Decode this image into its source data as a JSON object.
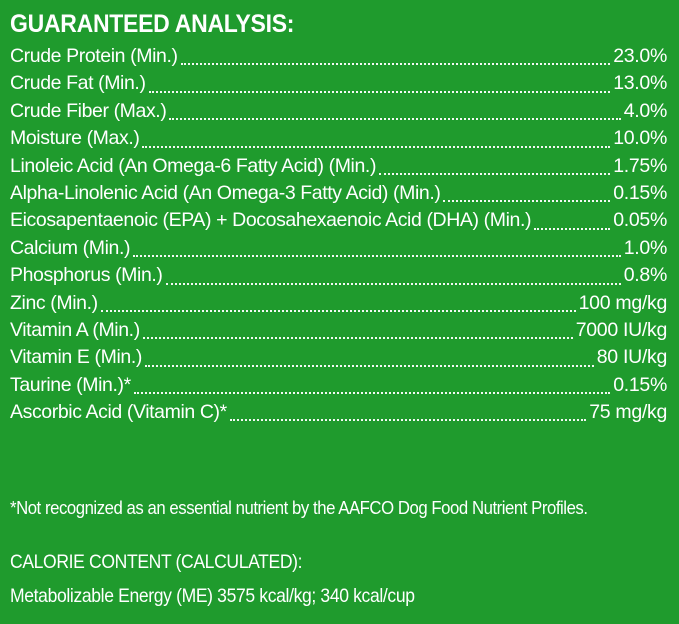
{
  "analysis": {
    "title": "GUARANTEED ANALYSIS:",
    "rows": [
      {
        "label": "Crude Protein (Min.)",
        "value": "23.0%"
      },
      {
        "label": "Crude Fat (Min.)",
        "value": "13.0%"
      },
      {
        "label": "Crude Fiber (Max.)",
        "value": "4.0%"
      },
      {
        "label": "Moisture (Max.)",
        "value": "10.0%"
      },
      {
        "label": "Linoleic Acid (An Omega-6 Fatty Acid) (Min.)",
        "value": "1.75%"
      },
      {
        "label": "Alpha-Linolenic Acid (An Omega-3 Fatty Acid) (Min.)",
        "value": "0.15%"
      },
      {
        "label": "Eicosapentaenoic (EPA) + Docosahexaenoic Acid (DHA) (Min.)",
        "value": "0.05%"
      },
      {
        "label": "Calcium (Min.)",
        "value": "1.0%"
      },
      {
        "label": "Phosphorus (Min.)",
        "value": "0.8%"
      },
      {
        "label": "Zinc (Min.)",
        "value": "100 mg/kg"
      },
      {
        "label": "Vitamin A (Min.)",
        "value": "7000 IU/kg"
      },
      {
        "label": "Vitamin E (Min.)",
        "value": "80 IU/kg"
      },
      {
        "label": "Taurine (Min.)*",
        "value": "0.15%"
      },
      {
        "label": "Ascorbic Acid (Vitamin C)*",
        "value": "75 mg/kg"
      }
    ],
    "footnote": "*Not recognized as an essential nutrient by the AAFCO Dog Food Nutrient Profiles."
  },
  "calorie": {
    "title": "CALORIE CONTENT (CALCULATED):",
    "line": "Metabolizable Energy (ME) 3575 kcal/kg;  340 kcal/cup"
  },
  "colors": {
    "background": "#1f9b2d",
    "text": "#ffffff"
  }
}
